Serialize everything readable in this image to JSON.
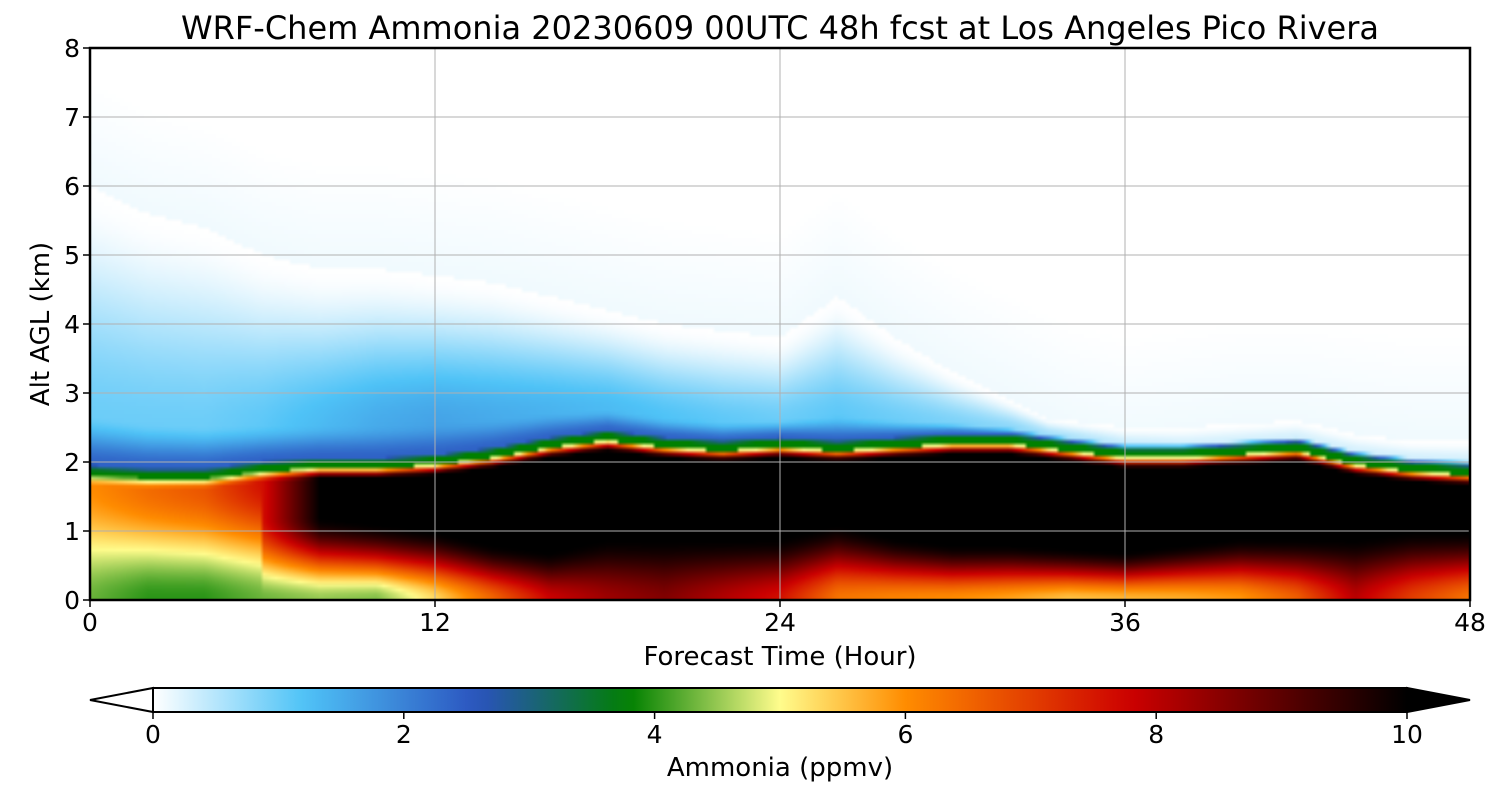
{
  "chart_data": {
    "type": "heatmap",
    "title": "WRF-Chem Ammonia  20230609 00UTC 48h fcst at Los Angeles Pico Rivera",
    "xlabel": "Forecast Time (Hour)",
    "ylabel": "Alt AGL (km)",
    "xlim": [
      0,
      48
    ],
    "ylim": [
      0,
      8
    ],
    "x_ticks": [
      "0",
      "12",
      "24",
      "36",
      "48"
    ],
    "y_ticks": [
      "0",
      "1",
      "2",
      "3",
      "4",
      "5",
      "6",
      "7",
      "8"
    ],
    "grid": true,
    "colorbar": {
      "label": "Ammonia  (ppmv)",
      "range": [
        0,
        10
      ],
      "ticks": [
        "0",
        "2",
        "4",
        "6",
        "8",
        "10"
      ],
      "extend": "both",
      "colors": [
        "#ffffff",
        "#4fc3f7",
        "#2a52be",
        "#008000",
        "#fffc8c",
        "#ff8c00",
        "#cc0000",
        "#6e0000",
        "#000000"
      ],
      "color_stops": [
        0,
        1.2,
        2.6,
        3.8,
        5,
        6,
        7.8,
        8.8,
        10
      ]
    },
    "field": {
      "time_hours": [
        0,
        2,
        4,
        6,
        8,
        10,
        12,
        14,
        16,
        18,
        20,
        22,
        24,
        26,
        28,
        30,
        32,
        34,
        36,
        38,
        40,
        42,
        44,
        46,
        48
      ],
      "surface_value": [
        4.3,
        4.0,
        4.0,
        4.3,
        4.5,
        4.4,
        5.3,
        6.5,
        7.8,
        8.3,
        8.6,
        8.1,
        7.6,
        6.3,
        6.1,
        6.0,
        5.8,
        5.5,
        5.6,
        5.7,
        5.9,
        6.6,
        8.0,
        7.0,
        6.3
      ],
      "max_layer_bottom_km": [
        null,
        null,
        null,
        null,
        1.2,
        1.1,
        1.0,
        0.8,
        0.7,
        0.9,
        0.9,
        0.9,
        0.9,
        1.1,
        0.9,
        0.8,
        0.8,
        0.75,
        0.7,
        0.8,
        0.9,
        0.9,
        0.9,
        1.0,
        1.0
      ],
      "max_layer_top_km": [
        null,
        null,
        null,
        null,
        1.9,
        1.95,
        1.95,
        1.9,
        1.95,
        1.9,
        1.85,
        1.9,
        1.9,
        1.95,
        2.0,
        2.05,
        2.0,
        1.95,
        1.85,
        1.95,
        1.95,
        2.0,
        1.8,
        1.7,
        1.6
      ],
      "boundary_layer_top_km": [
        1.95,
        1.9,
        1.9,
        2.0,
        2.05,
        2.05,
        2.1,
        2.2,
        2.35,
        2.45,
        2.35,
        2.3,
        2.35,
        2.3,
        2.35,
        2.4,
        2.4,
        2.3,
        2.2,
        2.2,
        2.25,
        2.3,
        2.1,
        2.0,
        1.95
      ],
      "peak_mixed_value": [
        6.0,
        6.4,
        6.7,
        7.6,
        10,
        10,
        10,
        10,
        10,
        10,
        10,
        10,
        10,
        10,
        10,
        10,
        10,
        10,
        10,
        10,
        10,
        10,
        10,
        10,
        10
      ],
      "moist_plume_top_km": [
        6.0,
        5.6,
        5.4,
        5.0,
        4.8,
        4.8,
        4.7,
        4.6,
        4.4,
        4.2,
        4.0,
        3.9,
        3.8,
        4.4,
        3.8,
        3.3,
        2.9,
        2.5,
        2.3,
        2.4,
        2.5,
        2.5,
        2.4,
        2.3,
        2.3
      ],
      "moist_plume_value": [
        1.0,
        1.0,
        1.0,
        1.1,
        1.3,
        1.5,
        1.6,
        1.5,
        1.4,
        1.3,
        1.2,
        1.1,
        1.0,
        1.1,
        1.0,
        0.9,
        0.8,
        0.6,
        0.4,
        0.3,
        0.3,
        0.3,
        0.3,
        0.3,
        0.3
      ]
    }
  }
}
